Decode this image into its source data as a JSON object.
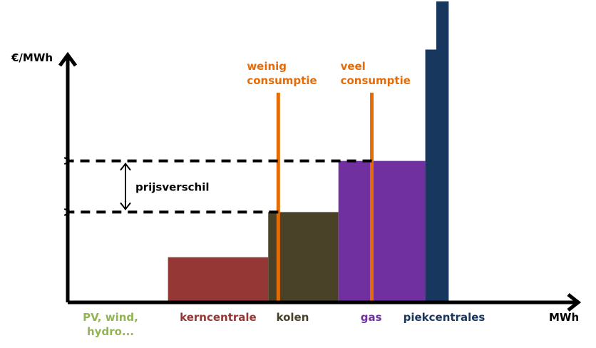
{
  "chart_data": {
    "type": "bar",
    "subtype": "merit-order-step",
    "ylabel": "€/MWh",
    "xlabel": "MWh",
    "grid": false,
    "legend": "none",
    "categories": [
      {
        "label": "PV, wind,\nhydro...",
        "color": "#92b552",
        "width": 30,
        "value": 0.5
      },
      {
        "label": "kerncentrale",
        "color": "#953735",
        "width": 30,
        "value": 15
      },
      {
        "label": "kolen",
        "color": "#4a4228",
        "width": 21,
        "value": 30
      },
      {
        "label": "gas",
        "color": "#7030a0",
        "width": 26,
        "value": 47
      },
      {
        "label": "piekcentrales",
        "color": "#17375e",
        "width": 7,
        "value": 84,
        "value2": 100
      }
    ],
    "demand_lines": [
      {
        "label": "weinig\nconsumptie",
        "x": 63,
        "color": "#e36c09"
      },
      {
        "label": "veel\nconsumptie",
        "x": 91,
        "color": "#e36c09"
      }
    ],
    "price_levels": [
      30,
      47
    ],
    "annotation": {
      "label": "prijsverschil"
    },
    "xlim": [
      0,
      144
    ],
    "ylim": [
      0,
      100
    ]
  }
}
